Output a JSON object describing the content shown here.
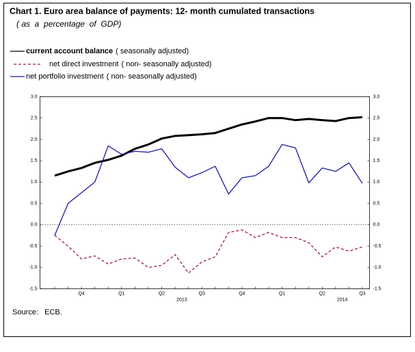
{
  "chart_data": {
    "type": "line",
    "title": "Chart 1. Euro area balance of payments: 12- month cumulated transactions",
    "subtitle": "( as  a  percentage  of  GDP)",
    "source": "Source:   ECB.",
    "categories": [
      null,
      null,
      "Q4",
      null,
      null,
      "Q1",
      null,
      null,
      "Q2",
      null,
      null,
      "Q3",
      null,
      null,
      "Q4",
      null,
      null,
      "Q1",
      null,
      null,
      "Q2",
      null,
      null,
      "Q3"
    ],
    "year_labels": [
      null,
      null,
      null,
      null,
      null,
      null,
      null,
      null,
      null,
      null,
      "2013",
      null,
      null,
      null,
      null,
      null,
      null,
      null,
      null,
      null,
      null,
      null,
      "2014",
      null
    ],
    "series": [
      {
        "name": "current account balance",
        "qualifier": "( seasonally  adjusted)",
        "color": "#000000",
        "style": "solid-bold",
        "values": [
          1.15,
          1.25,
          1.33,
          1.45,
          1.52,
          1.62,
          1.78,
          1.88,
          2.02,
          2.08,
          2.1,
          2.12,
          2.15,
          2.25,
          2.35,
          2.42,
          2.5,
          2.5,
          2.45,
          2.48,
          2.45,
          2.43,
          2.5,
          2.52
        ]
      },
      {
        "name": "net  direct  investment",
        "qualifier": "( non- seasonally  adjusted)",
        "color": "#a0163c",
        "style": "dashed",
        "values": [
          -0.25,
          -0.5,
          -0.8,
          -0.73,
          -0.92,
          -0.8,
          -0.78,
          -1.0,
          -0.95,
          -0.7,
          -1.13,
          -0.87,
          -0.75,
          -0.18,
          -0.12,
          -0.3,
          -0.18,
          -0.3,
          -0.3,
          -0.42,
          -0.75,
          -0.52,
          -0.62,
          -0.52
        ]
      },
      {
        "name": "net  portfolio  investment",
        "qualifier": "( non- seasonally  adjusted)",
        "color": "#1a1aa0",
        "style": "solid",
        "values": [
          -0.25,
          0.5,
          0.75,
          1.0,
          1.85,
          1.65,
          1.72,
          1.7,
          1.78,
          1.35,
          1.1,
          1.22,
          1.37,
          0.72,
          1.1,
          1.15,
          1.37,
          1.88,
          1.8,
          0.98,
          1.33,
          1.25,
          1.45,
          0.97
        ]
      }
    ],
    "ylim": [
      -1.5,
      3.0
    ],
    "yticks": [
      {
        "value": -1.5,
        "label": "-1.5"
      },
      {
        "value": -1,
        "label": "-1.0"
      },
      {
        "value": -0.5,
        "label": "-0.5"
      },
      {
        "value": 0,
        "label": "0.0"
      },
      {
        "value": 0.5,
        "label": "0.5"
      },
      {
        "value": 1,
        "label": "1.0"
      },
      {
        "value": 1.5,
        "label": "1.5"
      },
      {
        "value": 2,
        "label": "2.0"
      },
      {
        "value": 2.5,
        "label": "2.5"
      },
      {
        "value": 3,
        "label": "3.0"
      }
    ],
    "y2lim": [
      -1.5,
      3.0
    ],
    "y2ticks": [
      {
        "value": -1.5,
        "label": "-1.5"
      },
      {
        "value": -1,
        "label": "-1.0"
      },
      {
        "value": -0.5,
        "label": "-0.5"
      },
      {
        "value": 0,
        "label": "0.0"
      },
      {
        "value": 0.5,
        "label": "0.5"
      },
      {
        "value": 1,
        "label": "1.0"
      },
      {
        "value": 1.5,
        "label": "1.5"
      },
      {
        "value": 2,
        "label": "2.0"
      },
      {
        "value": 2.5,
        "label": "2.5"
      },
      {
        "value": 3,
        "label": "3.0"
      }
    ],
    "reference_line": {
      "value": 0,
      "style": "dotted"
    },
    "grid": false
  }
}
